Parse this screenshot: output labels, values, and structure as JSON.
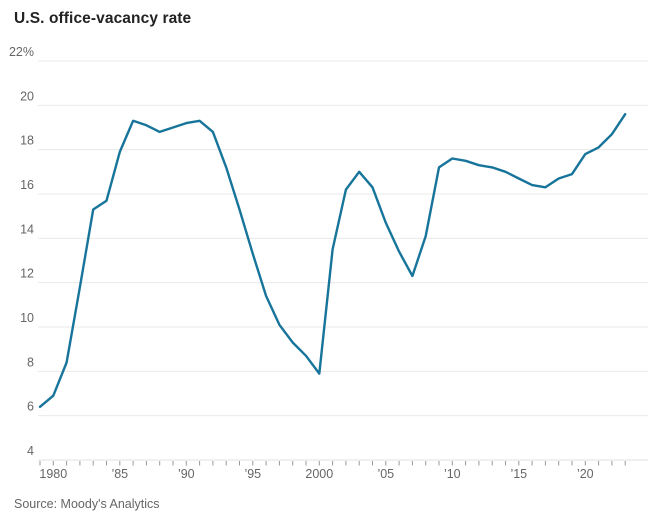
{
  "page": {
    "title": "U.S. office-vacancy rate",
    "source": "Source: Moody's Analytics"
  },
  "chart_data": {
    "type": "line",
    "title": "U.S. office-vacancy rate",
    "xlabel": "",
    "ylabel": "",
    "unit": "%",
    "x": [
      1979,
      1980,
      1981,
      1982,
      1983,
      1984,
      1985,
      1986,
      1987,
      1988,
      1989,
      1990,
      1991,
      1992,
      1993,
      1994,
      1995,
      1996,
      1997,
      1998,
      1999,
      2000,
      2001,
      2002,
      2003,
      2004,
      2005,
      2006,
      2007,
      2008,
      2009,
      2010,
      2011,
      2012,
      2013,
      2014,
      2015,
      2016,
      2017,
      2018,
      2019,
      2020,
      2021,
      2022,
      2023
    ],
    "values": [
      6.4,
      6.9,
      8.4,
      11.8,
      15.3,
      15.7,
      17.9,
      19.3,
      19.1,
      18.8,
      19.0,
      19.2,
      19.3,
      18.8,
      17.2,
      15.3,
      13.3,
      11.4,
      10.1,
      9.3,
      8.7,
      7.9,
      13.5,
      16.2,
      17.0,
      16.3,
      14.7,
      13.4,
      12.3,
      14.1,
      17.2,
      17.6,
      17.5,
      17.3,
      17.2,
      17.0,
      16.7,
      16.4,
      16.3,
      16.7,
      16.9,
      17.8,
      18.1,
      18.7,
      19.6
    ],
    "xlim": [
      1979,
      2023
    ],
    "ylim": [
      4,
      22
    ],
    "yticks": [
      4,
      6,
      8,
      10,
      12,
      14,
      16,
      18,
      20,
      22
    ],
    "ytick_labels": [
      "4",
      "6",
      "8",
      "10",
      "12",
      "14",
      "16",
      "18",
      "20",
      "22%"
    ],
    "xticks": [
      1980,
      1985,
      1990,
      1995,
      2000,
      2005,
      2010,
      2015,
      2020
    ],
    "xtick_labels": [
      "1980",
      "’85",
      "’90",
      "’95",
      "2000",
      "’05",
      "’10",
      "’15",
      "’20"
    ],
    "minor_tick_every_years": 1,
    "grid": "horizontal",
    "legend": "none",
    "source": "Source: Moody's Analytics"
  },
  "colors": {
    "line": "#17749a",
    "grid": "#e9e9e9",
    "axis": "#e0e0e0",
    "tick": "#999999",
    "label": "#666666",
    "title": "#222222"
  }
}
